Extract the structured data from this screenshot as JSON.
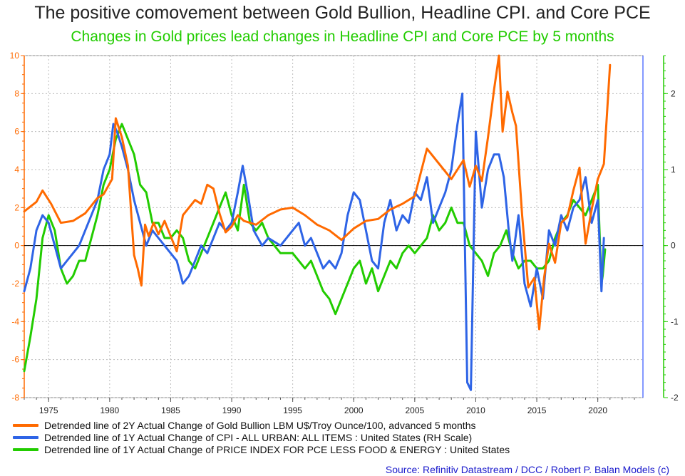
{
  "title": "The positive comovement between Gold Bullion, Headline CPI. and Core PCE",
  "subtitle": "Changes in Gold prices lead changes in Headline CPI and Core PCE by 5 months",
  "source": "Source: Refinitiv Datastream / DCC / Robert P. Balan Models (c)",
  "colors": {
    "gold": "#ff6a00",
    "cpi": "#2e64e6",
    "pce": "#22cc00",
    "source": "#1a1acc",
    "subtitle": "#22cc00"
  },
  "chart_data": {
    "type": "line",
    "title": "The positive comovement between Gold Bullion, Headline CPI. and Core PCE",
    "subtitle": "Changes in Gold prices lead changes in Headline CPI and Core PCE by 5 months",
    "x_ticks": [
      "1975",
      "1980",
      "1985",
      "1990",
      "1995",
      "2000",
      "2005",
      "2010",
      "2015",
      "2020"
    ],
    "xlim": [
      1973.0,
      2023.7
    ],
    "left_axis": {
      "ylim": [
        -8,
        10
      ],
      "ticks": [
        "-8",
        "-6",
        "-4",
        "-2",
        "0",
        "2",
        "4",
        "6",
        "8",
        "10"
      ],
      "color": "#ff6a00"
    },
    "right_axis": {
      "ylim": [
        -2,
        2.5
      ],
      "ticks": [
        "-2",
        "-1",
        "0",
        "1",
        "2"
      ],
      "color": "#22cc00"
    },
    "grid": true,
    "legend_position": "bottom",
    "series": [
      {
        "name": "Detrended line of 2Y Actual Change of Gold Bullion LBM U$/Troy Ounce/100, advanced 5 months",
        "color": "#ff6a00",
        "axis": "left",
        "x": [
          1973.0,
          1974.0,
          1974.5,
          1975.2,
          1976.0,
          1977.0,
          1978.0,
          1979.0,
          1979.5,
          1980.2,
          1980.5,
          1981.0,
          1981.5,
          1982.0,
          1982.3,
          1982.6,
          1982.9,
          1983.2,
          1983.6,
          1984.0,
          1984.5,
          1985.0,
          1985.5,
          1986.0,
          1987.0,
          1987.5,
          1988.0,
          1988.5,
          1989.0,
          1989.5,
          1990.0,
          1990.5,
          1991.0,
          1992.0,
          1993.0,
          1994.0,
          1995.0,
          1996.0,
          1997.0,
          1998.0,
          1999.0,
          2000.0,
          2001.0,
          2002.0,
          2003.0,
          2004.0,
          2005.0,
          2006.0,
          2007.0,
          2008.0,
          2009.0,
          2009.5,
          2010.0,
          2010.5,
          2011.0,
          2011.5,
          2011.9,
          2012.2,
          2012.6,
          2013.0,
          2013.3,
          2013.8,
          2014.3,
          2014.8,
          2015.2,
          2015.6,
          2016.0,
          2016.5,
          2017.0,
          2017.5,
          2018.0,
          2018.5,
          2019.0,
          2019.5,
          2020.0,
          2020.5,
          2021.0
        ],
        "values": [
          1.8,
          2.3,
          2.9,
          2.2,
          1.2,
          1.3,
          1.7,
          2.5,
          2.7,
          3.5,
          6.7,
          5.7,
          4.2,
          -0.5,
          -1.2,
          -2.1,
          1.1,
          0.5,
          1.2,
          0.6,
          1.3,
          0.5,
          -0.3,
          1.6,
          2.4,
          2.2,
          3.2,
          3.0,
          1.7,
          0.7,
          1.0,
          1.6,
          1.3,
          1.1,
          1.6,
          1.9,
          2.0,
          1.6,
          1.1,
          0.8,
          0.3,
          0.9,
          1.3,
          1.4,
          1.9,
          2.2,
          2.6,
          5.1,
          4.3,
          3.5,
          4.5,
          3.1,
          4.2,
          3.4,
          5.7,
          8.2,
          10.0,
          6.0,
          8.1,
          7.0,
          6.3,
          1.6,
          -2.2,
          -1.7,
          -4.4,
          -1.7,
          0.1,
          -0.9,
          1.2,
          1.5,
          2.9,
          4.1,
          0.1,
          1.9,
          3.5,
          4.3,
          9.5
        ]
      },
      {
        "name": "Detrended line of 1Y Actual Change of CPI - ALL URBAN: ALL ITEMS : United States (RH Scale)",
        "color": "#2e64e6",
        "axis": "right",
        "x": [
          1973.0,
          1973.5,
          1974.0,
          1974.5,
          1975.0,
          1975.5,
          1976.0,
          1976.5,
          1977.0,
          1977.5,
          1978.0,
          1978.5,
          1979.0,
          1979.5,
          1980.0,
          1980.3,
          1980.6,
          1981.0,
          1981.5,
          1982.0,
          1982.5,
          1983.0,
          1983.5,
          1984.0,
          1984.5,
          1985.0,
          1985.5,
          1986.0,
          1986.5,
          1987.0,
          1987.5,
          1988.0,
          1988.5,
          1989.0,
          1989.5,
          1990.0,
          1990.5,
          1990.9,
          1991.3,
          1991.8,
          1992.5,
          1993.0,
          1994.0,
          1995.0,
          1995.5,
          1996.0,
          1996.5,
          1997.0,
          1997.5,
          1998.0,
          1998.5,
          1999.0,
          1999.5,
          2000.0,
          2000.5,
          2001.0,
          2001.5,
          2002.0,
          2002.5,
          2003.0,
          2003.5,
          2004.0,
          2004.5,
          2005.0,
          2005.5,
          2006.0,
          2006.5,
          2007.0,
          2007.5,
          2008.0,
          2008.5,
          2008.9,
          2009.3,
          2009.6,
          2010.0,
          2010.5,
          2011.0,
          2011.5,
          2011.9,
          2012.3,
          2012.7,
          2013.0,
          2013.5,
          2014.0,
          2014.5,
          2015.0,
          2015.5,
          2016.0,
          2016.5,
          2017.0,
          2017.5,
          2018.0,
          2018.5,
          2019.0,
          2019.5,
          2020.0,
          2020.3,
          2020.5
        ],
        "values": [
          -0.6,
          -0.3,
          0.2,
          0.4,
          0.3,
          0.0,
          -0.3,
          -0.2,
          -0.1,
          0.0,
          0.2,
          0.4,
          0.6,
          1.0,
          1.2,
          1.6,
          1.5,
          1.3,
          1.0,
          0.6,
          0.3,
          0.0,
          0.2,
          0.1,
          0.0,
          -0.1,
          -0.2,
          -0.5,
          -0.4,
          -0.2,
          0.0,
          -0.1,
          0.1,
          0.3,
          0.2,
          0.3,
          0.7,
          1.05,
          0.7,
          0.2,
          0.0,
          0.1,
          0.0,
          0.2,
          0.3,
          0.0,
          0.1,
          -0.1,
          -0.3,
          -0.2,
          -0.3,
          -0.1,
          0.4,
          0.7,
          0.6,
          0.2,
          -0.2,
          -0.3,
          0.3,
          0.6,
          0.2,
          0.4,
          0.3,
          0.7,
          0.6,
          0.9,
          0.3,
          0.5,
          0.7,
          1.0,
          1.6,
          2.0,
          -1.8,
          -1.9,
          1.5,
          0.5,
          1.0,
          1.2,
          1.2,
          0.9,
          0.2,
          -0.2,
          0.4,
          -0.5,
          -0.8,
          -0.3,
          -0.7,
          0.2,
          0.0,
          0.4,
          0.2,
          0.5,
          0.6,
          0.9,
          0.3,
          0.6,
          -0.6,
          0.1
        ]
      },
      {
        "name": "Detrended line of 1Y Actual Change of PRICE INDEX FOR PCE LESS FOOD & ENERGY : United States",
        "color": "#22cc00",
        "axis": "right",
        "x": [
          1973.0,
          1973.5,
          1974.0,
          1974.5,
          1975.0,
          1975.5,
          1976.0,
          1976.5,
          1977.0,
          1977.5,
          1978.0,
          1978.5,
          1979.0,
          1979.5,
          1980.0,
          1980.5,
          1981.0,
          1981.5,
          1982.0,
          1982.5,
          1983.0,
          1983.5,
          1984.0,
          1984.5,
          1985.0,
          1985.5,
          1986.0,
          1986.5,
          1987.0,
          1987.5,
          1988.0,
          1988.5,
          1989.0,
          1989.5,
          1990.0,
          1990.5,
          1991.0,
          1991.5,
          1992.0,
          1992.5,
          1993.0,
          1994.0,
          1995.0,
          1995.5,
          1996.0,
          1996.5,
          1997.0,
          1997.5,
          1998.0,
          1998.5,
          1999.0,
          1999.5,
          2000.0,
          2000.5,
          2001.0,
          2001.5,
          2002.0,
          2002.5,
          2003.0,
          2003.5,
          2004.0,
          2004.5,
          2005.0,
          2005.5,
          2006.0,
          2006.5,
          2007.0,
          2007.5,
          2008.0,
          2008.5,
          2009.0,
          2009.5,
          2010.0,
          2010.5,
          2011.0,
          2011.5,
          2012.0,
          2012.5,
          2013.0,
          2013.5,
          2014.0,
          2014.5,
          2015.0,
          2015.5,
          2016.0,
          2016.5,
          2017.0,
          2017.5,
          2018.0,
          2018.5,
          2019.0,
          2019.5,
          2020.0,
          2020.3,
          2020.4,
          2020.6
        ],
        "values": [
          -1.65,
          -1.2,
          -0.7,
          0.1,
          0.4,
          0.2,
          -0.3,
          -0.5,
          -0.4,
          -0.2,
          -0.2,
          0.1,
          0.4,
          0.8,
          1.0,
          1.4,
          1.6,
          1.4,
          1.2,
          0.8,
          0.7,
          0.3,
          0.3,
          0.1,
          0.1,
          0.2,
          0.1,
          -0.2,
          -0.3,
          -0.1,
          0.1,
          0.3,
          0.5,
          0.7,
          0.4,
          0.2,
          0.8,
          0.3,
          0.2,
          0.3,
          0.1,
          -0.1,
          -0.1,
          -0.2,
          -0.3,
          -0.2,
          -0.4,
          -0.6,
          -0.7,
          -0.9,
          -0.7,
          -0.5,
          -0.3,
          -0.2,
          -0.5,
          -0.3,
          -0.6,
          -0.4,
          -0.2,
          -0.3,
          -0.1,
          0.0,
          -0.1,
          0.0,
          0.1,
          0.4,
          0.2,
          0.3,
          0.5,
          0.3,
          0.3,
          0.0,
          -0.1,
          -0.2,
          -0.4,
          -0.1,
          0.0,
          0.2,
          -0.1,
          -0.3,
          -0.2,
          -0.2,
          -0.3,
          -0.3,
          -0.2,
          0.1,
          0.3,
          0.4,
          0.6,
          0.5,
          0.4,
          0.6,
          0.8,
          -0.5,
          -0.4,
          -0.05
        ]
      }
    ]
  }
}
